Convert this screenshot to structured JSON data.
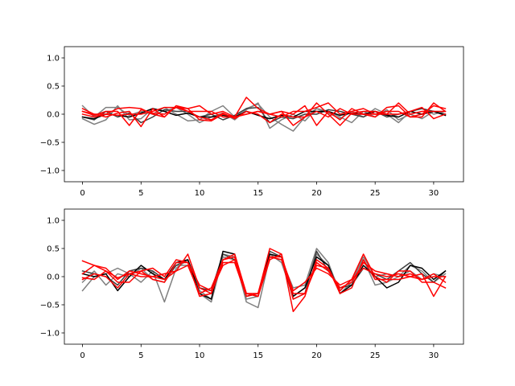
{
  "chart_data": [
    {
      "type": "line",
      "title": "",
      "xlabel": "",
      "ylabel": "",
      "xlim": [
        -1.55,
        32.55
      ],
      "ylim": [
        -1.2,
        1.2
      ],
      "xticks": [
        0,
        5,
        10,
        15,
        20,
        25,
        30
      ],
      "yticks": [
        -1.0,
        -0.5,
        0.0,
        0.5,
        1.0
      ],
      "ytick_labels": [
        "−1.0",
        "−0.5",
        "0.0",
        "0.5",
        "1.0"
      ],
      "grid": false,
      "legend": "none",
      "x": [
        0,
        1,
        2,
        3,
        4,
        5,
        6,
        7,
        8,
        9,
        10,
        11,
        12,
        13,
        14,
        15,
        16,
        17,
        18,
        19,
        20,
        21,
        22,
        23,
        24,
        25,
        26,
        27,
        28,
        29,
        30,
        31
      ],
      "series": [
        {
          "color": "#7f7f7f",
          "values": [
            0.15,
            -0.05,
            0.12,
            0.12,
            -0.02,
            0.05,
            0.0,
            0.12,
            0.0,
            -0.12,
            -0.1,
            0.05,
            0.15,
            -0.05,
            0.1,
            0.18,
            -0.05,
            -0.18,
            -0.3,
            -0.05,
            0.1,
            0.02,
            -0.08,
            0.05,
            -0.05,
            0.1,
            0.0,
            -0.15,
            0.05,
            0.1,
            0.0,
            0.05
          ]
        },
        {
          "color": "#7f7f7f",
          "values": [
            -0.08,
            -0.18,
            -0.1,
            0.15,
            -0.1,
            -0.08,
            0.1,
            0.05,
            0.12,
            0.0,
            -0.15,
            -0.05,
            0.02,
            -0.1,
            0.08,
            0.2,
            -0.25,
            -0.1,
            0.0,
            -0.12,
            0.1,
            0.05,
            -0.05,
            -0.15,
            0.05,
            -0.05,
            0.08,
            -0.1,
            0.0,
            -0.08,
            0.05,
            -0.02
          ]
        },
        {
          "color": "#3f3f3f",
          "values": [
            -0.05,
            -0.1,
            0.05,
            -0.05,
            0.02,
            -0.15,
            -0.05,
            0.08,
            0.05,
            0.05,
            -0.05,
            0.0,
            -0.1,
            -0.02,
            0.1,
            0.12,
            -0.15,
            -0.05,
            -0.08,
            0.0,
            0.0,
            0.08,
            0.05,
            0.0,
            -0.05,
            0.05,
            -0.05,
            0.0,
            0.05,
            0.1,
            0.05,
            0.0
          ]
        },
        {
          "color": "#000000",
          "values": [
            -0.05,
            -0.08,
            0.0,
            -0.02,
            -0.05,
            0.02,
            0.1,
            0.05,
            -0.02,
            0.02,
            -0.05,
            -0.05,
            -0.02,
            -0.05,
            0.05,
            -0.02,
            -0.08,
            -0.02,
            -0.05,
            0.05,
            0.05,
            0.05,
            -0.02,
            0.02,
            0.0,
            0.05,
            -0.02,
            -0.05,
            0.05,
            0.0,
            0.05,
            -0.02
          ]
        },
        {
          "color": "#ff0000",
          "values": [
            0.1,
            0.0,
            -0.05,
            0.02,
            0.05,
            -0.22,
            0.1,
            -0.05,
            0.15,
            0.05,
            -0.05,
            -0.1,
            0.02,
            -0.08,
            0.05,
            0.0,
            -0.15,
            0.0,
            -0.05,
            -0.05,
            0.2,
            0.0,
            -0.2,
            0.02,
            0.05,
            0.05,
            0.0,
            0.2,
            0.0,
            0.05,
            0.05,
            0.05
          ]
        },
        {
          "color": "#ff0000",
          "values": [
            0.05,
            -0.02,
            0.05,
            0.05,
            -0.2,
            0.08,
            0.02,
            0.0,
            0.12,
            0.1,
            -0.1,
            -0.12,
            0.0,
            -0.05,
            0.3,
            0.1,
            0.0,
            0.05,
            -0.2,
            -0.05,
            0.05,
            -0.05,
            0.1,
            0.0,
            0.0,
            0.0,
            0.05,
            0.05,
            -0.05,
            0.0,
            0.15,
            0.1
          ]
        },
        {
          "color": "#ff0000",
          "values": [
            0.0,
            -0.05,
            0.0,
            0.1,
            0.12,
            0.1,
            0.0,
            -0.05,
            0.15,
            0.1,
            0.15,
            0.0,
            0.05,
            -0.05,
            0.0,
            0.05,
            0.0,
            0.05,
            0.0,
            0.15,
            -0.2,
            0.05,
            -0.1,
            0.1,
            0.0,
            -0.05,
            0.12,
            0.15,
            -0.05,
            -0.05,
            0.2,
            0.05
          ]
        },
        {
          "color": "#ff0000",
          "values": [
            0.05,
            0.0,
            0.0,
            -0.02,
            0.0,
            0.0,
            0.05,
            0.12,
            0.12,
            0.05,
            0.05,
            0.05,
            -0.05,
            -0.05,
            0.0,
            0.05,
            0.0,
            -0.05,
            0.05,
            0.05,
            0.12,
            0.2,
            0.0,
            0.05,
            0.1,
            0.0,
            0.0,
            0.0,
            0.05,
            0.12,
            -0.08,
            0.0
          ]
        }
      ]
    },
    {
      "type": "line",
      "title": "",
      "xlabel": "",
      "ylabel": "",
      "xlim": [
        -1.55,
        32.55
      ],
      "ylim": [
        -1.2,
        1.2
      ],
      "xticks": [
        0,
        5,
        10,
        15,
        20,
        25,
        30
      ],
      "yticks": [
        -1.0,
        -0.5,
        0.0,
        0.5,
        1.0
      ],
      "ytick_labels": [
        "−1.0",
        "−0.5",
        "0.0",
        "0.5",
        "1.0"
      ],
      "grid": false,
      "legend": "none",
      "x": [
        0,
        1,
        2,
        3,
        4,
        5,
        6,
        7,
        8,
        9,
        10,
        11,
        12,
        13,
        14,
        15,
        16,
        17,
        18,
        19,
        20,
        21,
        22,
        23,
        24,
        25,
        26,
        27,
        28,
        29,
        30,
        31
      ],
      "series": [
        {
          "color": "#7f7f7f",
          "values": [
            -0.25,
            0.0,
            0.05,
            0.15,
            0.05,
            -0.1,
            0.1,
            -0.45,
            0.15,
            0.3,
            -0.25,
            -0.4,
            0.4,
            0.35,
            -0.45,
            -0.55,
            0.35,
            0.3,
            -0.2,
            -0.15,
            0.5,
            0.25,
            -0.3,
            -0.1,
            0.35,
            0.0,
            0.05,
            0.0,
            0.1,
            -0.05,
            0.05,
            0.0
          ]
        },
        {
          "color": "#7f7f7f",
          "values": [
            -0.1,
            0.1,
            -0.15,
            0.05,
            0.0,
            0.15,
            -0.05,
            -0.1,
            0.2,
            0.2,
            -0.3,
            -0.45,
            0.35,
            0.3,
            -0.4,
            -0.35,
            0.4,
            0.25,
            -0.35,
            -0.2,
            0.4,
            0.2,
            -0.25,
            -0.05,
            0.3,
            -0.15,
            -0.1,
            0.0,
            0.2,
            0.1,
            -0.1,
            0.05
          ]
        },
        {
          "color": "#3f3f3f",
          "values": [
            0.1,
            0.05,
            0.0,
            -0.15,
            0.1,
            0.15,
            0.1,
            -0.05,
            0.2,
            0.3,
            -0.2,
            -0.25,
            0.4,
            0.3,
            -0.3,
            -0.35,
            0.45,
            0.35,
            -0.4,
            -0.3,
            0.45,
            0.1,
            -0.2,
            -0.15,
            0.15,
            0.05,
            -0.05,
            0.1,
            0.25,
            0.05,
            -0.1,
            0.1
          ]
        },
        {
          "color": "#000000",
          "values": [
            0.05,
            0.0,
            0.05,
            -0.25,
            0.0,
            0.2,
            0.05,
            -0.05,
            0.25,
            0.3,
            -0.3,
            -0.4,
            0.45,
            0.4,
            -0.35,
            -0.3,
            0.4,
            0.35,
            -0.35,
            -0.2,
            0.35,
            0.2,
            -0.3,
            -0.15,
            0.2,
            0.0,
            -0.2,
            -0.1,
            0.2,
            0.15,
            -0.05,
            0.1
          ]
        },
        {
          "color": "#ff0000",
          "values": [
            0.28,
            0.2,
            0.1,
            -0.1,
            -0.1,
            0.1,
            0.15,
            0.0,
            0.3,
            0.25,
            -0.35,
            -0.3,
            0.25,
            0.25,
            -0.35,
            -0.3,
            0.5,
            0.4,
            -0.62,
            -0.35,
            0.3,
            0.15,
            -0.25,
            -0.05,
            0.4,
            0.0,
            -0.1,
            0.1,
            0.1,
            -0.1,
            -0.1,
            -0.2
          ]
        },
        {
          "color": "#ff0000",
          "values": [
            0.05,
            0.2,
            0.15,
            -0.05,
            0.1,
            0.05,
            0.0,
            0.05,
            0.1,
            0.4,
            -0.2,
            -0.3,
            0.3,
            0.35,
            -0.3,
            -0.35,
            0.3,
            0.4,
            -0.4,
            -0.3,
            0.2,
            0.15,
            -0.3,
            -0.2,
            0.3,
            -0.05,
            -0.05,
            -0.05,
            0.0,
            0.05,
            -0.35,
            0.0
          ]
        },
        {
          "color": "#ff0000",
          "values": [
            -0.05,
            0.05,
            0.0,
            -0.2,
            0.05,
            0.1,
            -0.05,
            -0.1,
            0.25,
            0.25,
            -0.15,
            -0.25,
            0.2,
            0.3,
            -0.3,
            -0.3,
            0.35,
            0.35,
            -0.25,
            -0.1,
            0.15,
            0.05,
            -0.15,
            -0.05,
            0.15,
            0.05,
            0.0,
            0.05,
            0.0,
            -0.05,
            0.05,
            -0.1
          ]
        },
        {
          "color": "#ff0000",
          "values": [
            -0.02,
            -0.05,
            0.1,
            -0.02,
            0.05,
            0.0,
            0.0,
            -0.05,
            0.1,
            0.2,
            -0.3,
            -0.2,
            0.3,
            0.4,
            -0.3,
            -0.35,
            0.35,
            0.3,
            -0.3,
            -0.3,
            0.25,
            0.1,
            -0.2,
            -0.1,
            0.25,
            0.1,
            0.05,
            0.0,
            0.05,
            -0.05,
            0.0,
            0.0
          ]
        }
      ]
    }
  ]
}
